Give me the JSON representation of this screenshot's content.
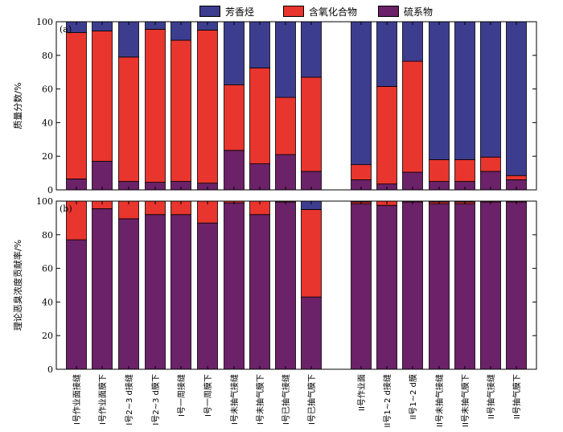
{
  "chart_data": {
    "type": "bar",
    "stacked": true,
    "categories": [
      "I号作业面接缝",
      "I号作业面膜下",
      "I号2~3 d接缝",
      "I号2~3 d膜下",
      "I号一周接缝",
      "I号一周膜下",
      "I号未抽气接缝",
      "I号未抽气膜下",
      "I号已抽气接缝",
      "I号已抽气膜下",
      "II号作业面",
      "II号1~2 d接缝",
      "II号1~2 d膜",
      "II号未抽气接缝",
      "II号未抽气膜下",
      "II号抽气接缝",
      "II号抽气膜下"
    ],
    "legend": [
      {
        "name": "芳香烃",
        "color": "#3d3d8f"
      },
      {
        "name": "含氧化合物",
        "color": "#e8352e"
      },
      {
        "name": "硫系物",
        "color": "#6b2268"
      }
    ],
    "panels": [
      {
        "label": "(a)",
        "ylabel": "质量分数/%",
        "ylim": [
          0,
          100
        ],
        "yticks": [
          "0",
          "20",
          "40",
          "60",
          "80",
          "100"
        ],
        "series": [
          {
            "name": "硫系物",
            "values": [
              6.5,
              17,
              5,
              4.5,
              5,
              4,
              23.5,
              15.5,
              21,
              11,
              6,
              3.5,
              10.5,
              5,
              5,
              11,
              6
            ]
          },
          {
            "name": "含氧化合物",
            "values": [
              87,
              77.5,
              74,
              91,
              84,
              91,
              39,
              57,
              34,
              56,
              9,
              58,
              66,
              13,
              13,
              8.5,
              2.5
            ]
          },
          {
            "name": "芳香烃",
            "values": [
              6.5,
              5.5,
              21,
              4.5,
              11,
              5,
              37.5,
              27.5,
              45,
              33,
              85,
              38.5,
              23.5,
              82,
              82,
              80.5,
              91.5
            ]
          }
        ]
      },
      {
        "label": "(b)",
        "ylabel": "理论恶臭浓度贡献率/%",
        "ylim": [
          0,
          100
        ],
        "yticks": [
          "0",
          "20",
          "40",
          "60",
          "80",
          "100"
        ],
        "series": [
          {
            "name": "硫系物",
            "values": [
              77,
              95.5,
              89.5,
              92,
              92,
              87,
              99,
              92,
              99.5,
              43,
              98.5,
              97.5,
              99.5,
              98.5,
              98.5,
              99.5,
              99.5
            ]
          },
          {
            "name": "含氧化合物",
            "values": [
              23,
              4.5,
              10.5,
              8,
              8,
              13,
              1,
              8,
              0.5,
              52,
              1,
              2.5,
              0.5,
              1,
              1,
              0.5,
              0.5
            ]
          },
          {
            "name": "芳香烃",
            "values": [
              0,
              0,
              0,
              0,
              0,
              0,
              0,
              0,
              0,
              5,
              0.5,
              0,
              0,
              0.5,
              0.5,
              0,
              0
            ]
          }
        ]
      }
    ]
  }
}
